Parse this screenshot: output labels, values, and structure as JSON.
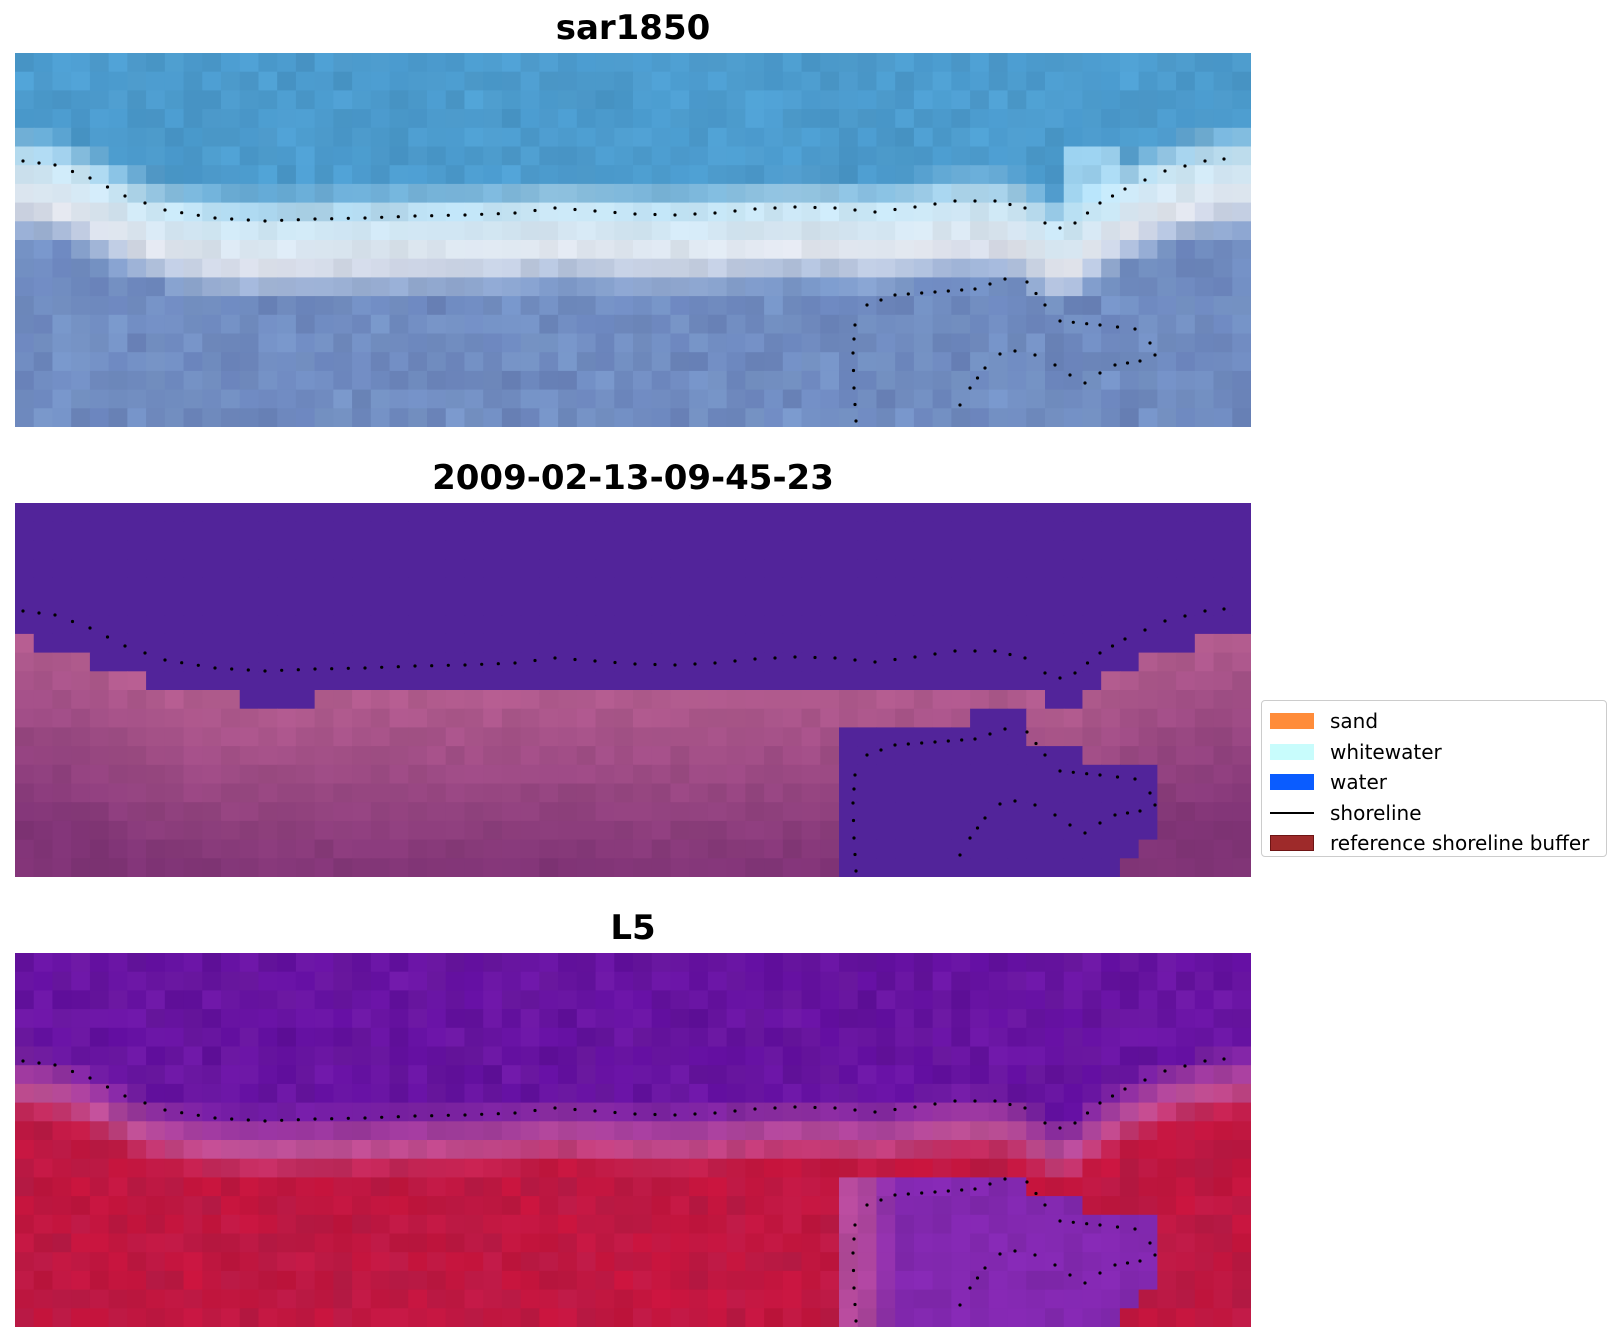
{
  "panels": [
    {
      "id": "rgb",
      "title": "sar1850"
    },
    {
      "id": "classified",
      "title": "2009-02-13-09-45-23"
    },
    {
      "id": "index",
      "title": "L5"
    }
  ],
  "legend": {
    "items": [
      {
        "label": "sand",
        "kind": "patch",
        "color": "#ff8c3a"
      },
      {
        "label": "whitewater",
        "kind": "patch",
        "color": "#c8fcfc"
      },
      {
        "label": "water",
        "kind": "patch",
        "color": "#0a5cff"
      },
      {
        "label": "shoreline",
        "kind": "line",
        "color": "#000000"
      },
      {
        "label": "reference shoreline buffer",
        "kind": "patch",
        "color": "#9e2a2a",
        "edge": "#6e1414"
      }
    ]
  },
  "colors": {
    "water_class": "#52249a",
    "land_class": "#8a3a7e",
    "index_water": "#6414a0",
    "index_land": "#c0143c",
    "shoreline": "#000000"
  }
}
